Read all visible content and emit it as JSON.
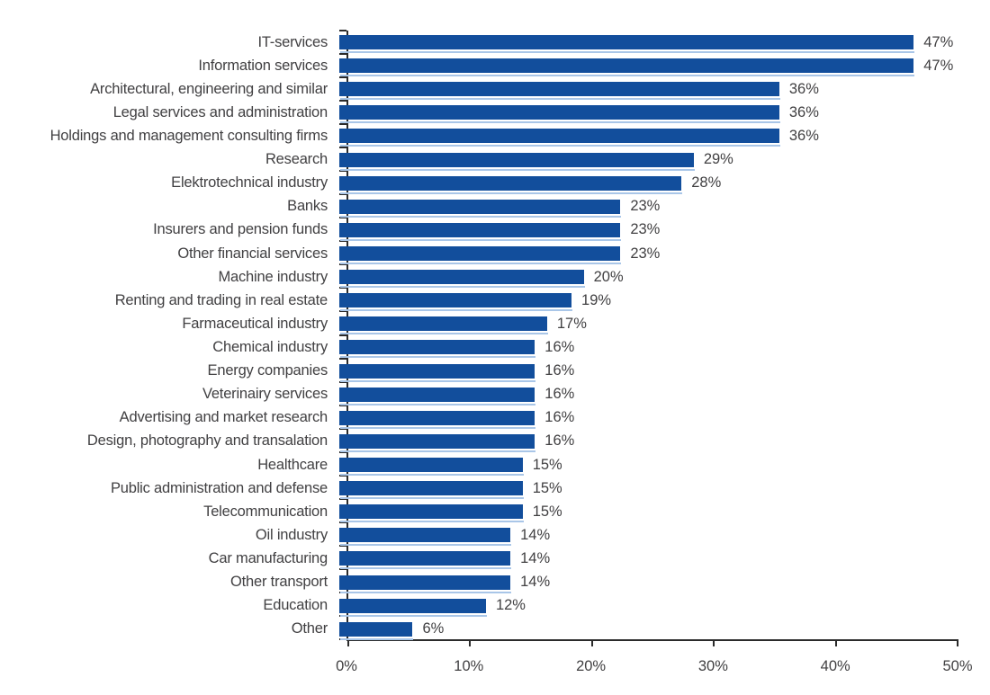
{
  "chart_data": {
    "type": "bar",
    "orientation": "horizontal",
    "title": "",
    "xlabel": "",
    "ylabel": "",
    "unit": "%",
    "xlim": [
      0,
      50
    ],
    "x_ticks": [
      "0%",
      "10%",
      "20%",
      "30%",
      "40%",
      "50%"
    ],
    "x_tick_values": [
      0,
      10,
      20,
      30,
      40,
      50
    ],
    "grid": false,
    "legend": "none",
    "bar_color": "#124e9c",
    "bar_shadow_color": "#a9c6e8",
    "axis_color": "#2b2b2b",
    "text_color": "#414042",
    "categories": [
      "IT-services",
      "Information services",
      "Architectural, engineering and similar",
      "Legal services and administration",
      "Holdings and management consulting firms",
      "Research",
      "Elektrotechnical industry",
      "Banks",
      "Insurers and pension funds",
      "Other financial services",
      "Machine industry",
      "Renting and trading in real estate",
      "Farmaceutical industry",
      "Chemical industry",
      "Energy companies",
      "Veterinairy services",
      "Advertising and market research",
      "Design, photography and transalation",
      "Healthcare",
      "Public administration and defense",
      "Telecommunication",
      "Oil industry",
      "Car manufacturing",
      "Other transport",
      "Education",
      "Other"
    ],
    "values": [
      47,
      47,
      36,
      36,
      36,
      29,
      28,
      23,
      23,
      23,
      20,
      19,
      17,
      16,
      16,
      16,
      16,
      16,
      15,
      15,
      15,
      14,
      14,
      14,
      12,
      6
    ]
  }
}
